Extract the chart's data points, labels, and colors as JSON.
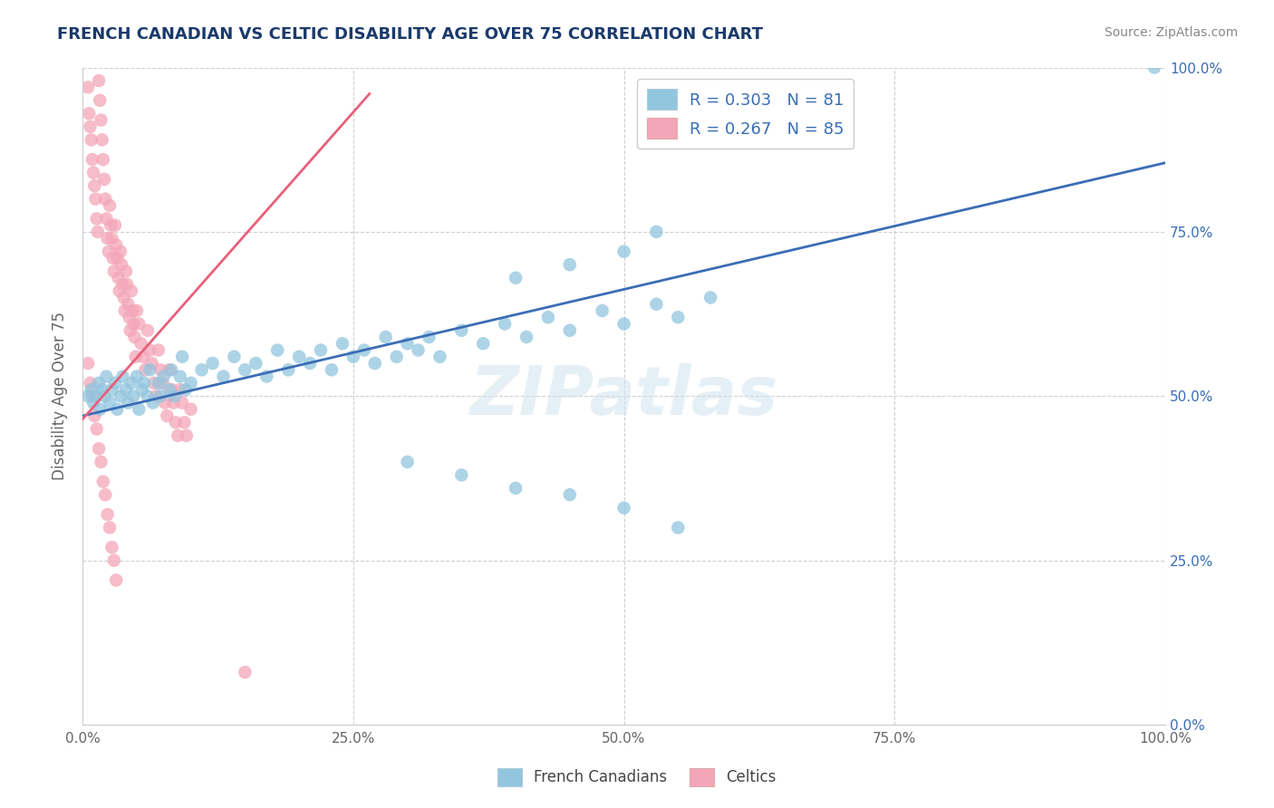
{
  "title": "FRENCH CANADIAN VS CELTIC DISABILITY AGE OVER 75 CORRELATION CHART",
  "source": "Source: ZipAtlas.com",
  "ylabel": "Disability Age Over 75",
  "xlim": [
    0,
    1.0
  ],
  "ylim": [
    0,
    1.0
  ],
  "xtick_vals": [
    0.0,
    0.25,
    0.5,
    0.75,
    1.0
  ],
  "xtick_labels": [
    "0.0%",
    "25.0%",
    "50.0%",
    "75.0%",
    "100.0%"
  ],
  "ytick_vals": [
    0.0,
    0.25,
    0.5,
    0.75,
    1.0
  ],
  "ytick_labels_right": [
    "0.0%",
    "25.0%",
    "50.0%",
    "75.0%",
    "100.0%"
  ],
  "blue_R": 0.303,
  "blue_N": 81,
  "pink_R": 0.267,
  "pink_N": 85,
  "blue_color": "#92c5de",
  "pink_color": "#f4a6b8",
  "blue_line_color": "#3a6db5",
  "pink_line_color": "#e8607a",
  "watermark": "ZIPatlas",
  "legend_label_blue": "French Canadians",
  "legend_label_pink": "Celtics",
  "fc_x": [
    0.005,
    0.008,
    0.01,
    0.012,
    0.015,
    0.016,
    0.018,
    0.02,
    0.022,
    0.025,
    0.027,
    0.03,
    0.032,
    0.035,
    0.037,
    0.04,
    0.042,
    0.045,
    0.047,
    0.05,
    0.052,
    0.055,
    0.057,
    0.06,
    0.062,
    0.065,
    0.07,
    0.072,
    0.075,
    0.08,
    0.082,
    0.085,
    0.09,
    0.092,
    0.095,
    0.1,
    0.11,
    0.12,
    0.13,
    0.14,
    0.15,
    0.16,
    0.17,
    0.18,
    0.19,
    0.2,
    0.21,
    0.22,
    0.23,
    0.24,
    0.25,
    0.26,
    0.27,
    0.28,
    0.29,
    0.3,
    0.31,
    0.32,
    0.33,
    0.35,
    0.37,
    0.39,
    0.41,
    0.43,
    0.45,
    0.48,
    0.5,
    0.53,
    0.55,
    0.58,
    0.3,
    0.35,
    0.4,
    0.45,
    0.5,
    0.55,
    0.4,
    0.45,
    0.5,
    0.53,
    0.99
  ],
  "fc_y": [
    0.5,
    0.51,
    0.49,
    0.5,
    0.52,
    0.48,
    0.51,
    0.5,
    0.53,
    0.49,
    0.51,
    0.52,
    0.48,
    0.5,
    0.53,
    0.51,
    0.49,
    0.52,
    0.5,
    0.53,
    0.48,
    0.51,
    0.52,
    0.5,
    0.54,
    0.49,
    0.52,
    0.5,
    0.53,
    0.51,
    0.54,
    0.5,
    0.53,
    0.56,
    0.51,
    0.52,
    0.54,
    0.55,
    0.53,
    0.56,
    0.54,
    0.55,
    0.53,
    0.57,
    0.54,
    0.56,
    0.55,
    0.57,
    0.54,
    0.58,
    0.56,
    0.57,
    0.55,
    0.59,
    0.56,
    0.58,
    0.57,
    0.59,
    0.56,
    0.6,
    0.58,
    0.61,
    0.59,
    0.62,
    0.6,
    0.63,
    0.61,
    0.64,
    0.62,
    0.65,
    0.4,
    0.38,
    0.36,
    0.35,
    0.33,
    0.3,
    0.68,
    0.7,
    0.72,
    0.75,
    1.0
  ],
  "ce_x": [
    0.005,
    0.006,
    0.007,
    0.008,
    0.009,
    0.01,
    0.011,
    0.012,
    0.013,
    0.014,
    0.015,
    0.016,
    0.017,
    0.018,
    0.019,
    0.02,
    0.021,
    0.022,
    0.023,
    0.024,
    0.025,
    0.026,
    0.027,
    0.028,
    0.029,
    0.03,
    0.031,
    0.032,
    0.033,
    0.034,
    0.035,
    0.036,
    0.037,
    0.038,
    0.039,
    0.04,
    0.041,
    0.042,
    0.043,
    0.044,
    0.045,
    0.046,
    0.047,
    0.048,
    0.049,
    0.05,
    0.052,
    0.054,
    0.056,
    0.058,
    0.06,
    0.062,
    0.064,
    0.066,
    0.068,
    0.07,
    0.072,
    0.074,
    0.076,
    0.078,
    0.08,
    0.082,
    0.084,
    0.086,
    0.088,
    0.09,
    0.092,
    0.094,
    0.096,
    0.1,
    0.005,
    0.007,
    0.009,
    0.011,
    0.013,
    0.015,
    0.017,
    0.019,
    0.021,
    0.023,
    0.025,
    0.027,
    0.029,
    0.031,
    0.15
  ],
  "ce_y": [
    0.97,
    0.93,
    0.91,
    0.89,
    0.86,
    0.84,
    0.82,
    0.8,
    0.77,
    0.75,
    0.98,
    0.95,
    0.92,
    0.89,
    0.86,
    0.83,
    0.8,
    0.77,
    0.74,
    0.72,
    0.79,
    0.76,
    0.74,
    0.71,
    0.69,
    0.76,
    0.73,
    0.71,
    0.68,
    0.66,
    0.72,
    0.7,
    0.67,
    0.65,
    0.63,
    0.69,
    0.67,
    0.64,
    0.62,
    0.6,
    0.66,
    0.63,
    0.61,
    0.59,
    0.56,
    0.63,
    0.61,
    0.58,
    0.56,
    0.54,
    0.6,
    0.57,
    0.55,
    0.52,
    0.5,
    0.57,
    0.54,
    0.52,
    0.49,
    0.47,
    0.54,
    0.51,
    0.49,
    0.46,
    0.44,
    0.51,
    0.49,
    0.46,
    0.44,
    0.48,
    0.55,
    0.52,
    0.5,
    0.47,
    0.45,
    0.42,
    0.4,
    0.37,
    0.35,
    0.32,
    0.3,
    0.27,
    0.25,
    0.22,
    0.08
  ]
}
